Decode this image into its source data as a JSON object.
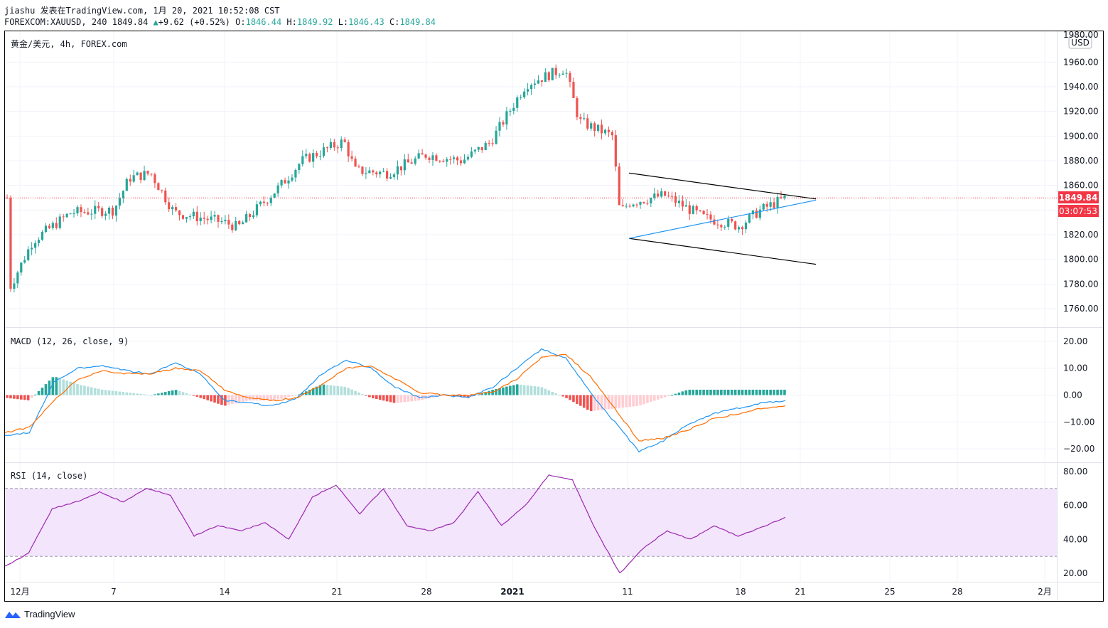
{
  "header": {
    "line1": "jiashu 发表在TradingView.com, 1月 20, 2021 10:52:08 CST",
    "symbol_line": "FOREXCOM:XAUUSD, 240 1849.84",
    "change_arrow": "▲",
    "change": "+9.62 (+0.52%)",
    "o_label": "O:",
    "o_value": "1846.44",
    "h_label": "H:",
    "h_value": "1849.92",
    "l_label": "L:",
    "l_value": "1846.43",
    "c_label": "C:",
    "c_value": "1849.84"
  },
  "main_pane": {
    "title": "黄金/美元, 4h, FOREX.com",
    "currency_badge": "USD",
    "price_ticks": [
      "1960.00",
      "1940.00",
      "1920.00",
      "1900.00",
      "1880.00",
      "1860.00",
      "1820.00",
      "1800.00",
      "1780.00",
      "1760.00"
    ],
    "top_tick": "1980.00",
    "last_price_label": "1849.84",
    "countdown_label": "03:07:53"
  },
  "macd_pane": {
    "title": "MACD (12, 26, close, 9)",
    "ticks": [
      "20.00",
      "10.00",
      "0.00",
      "−10.00",
      "−20.00"
    ]
  },
  "rsi_pane": {
    "title": "RSI (14, close)",
    "ticks": [
      "80.00",
      "60.00",
      "40.00",
      "20.00"
    ]
  },
  "time_axis": [
    "12月",
    "7",
    "14",
    "21",
    "28",
    "2021",
    "11",
    "18",
    "21",
    "25",
    "28",
    "2月"
  ],
  "footer": {
    "brand": "TradingView"
  },
  "colors": {
    "up": "#26a69a",
    "down": "#ef5350",
    "macd_line": "#2196f3",
    "signal_line": "#ff6d00",
    "rsi_line": "#9c27b0",
    "rsi_band": "#f3e5fc",
    "last_price": "#f23645"
  },
  "chart_data": [
    {
      "type": "candlestick",
      "title": "黄金/美元, 4h, FOREX.com",
      "ylim": [
        1745,
        1985
      ],
      "y_axis_side": "right",
      "x_ticks": [
        "12月",
        "7",
        "14",
        "21",
        "28",
        "2021",
        "11",
        "18",
        "21",
        "25",
        "28",
        "2月"
      ],
      "ohlc_waypoints_close": [
        {
          "t": "12月",
          "close": 1775
        },
        {
          "t": "12月 2",
          "close": 1815
        },
        {
          "t": "12月 4",
          "close": 1838
        },
        {
          "t": "12月 7",
          "close": 1840
        },
        {
          "t": "12月 8",
          "close": 1866
        },
        {
          "t": "12月 9",
          "close": 1870
        },
        {
          "t": "12月 10",
          "close": 1838
        },
        {
          "t": "12月 14",
          "close": 1830
        },
        {
          "t": "12月 15",
          "close": 1826
        },
        {
          "t": "12月 17",
          "close": 1860
        },
        {
          "t": "12月 18",
          "close": 1880
        },
        {
          "t": "12月 21",
          "close": 1896
        },
        {
          "t": "12月 22",
          "close": 1872
        },
        {
          "t": "12月 24",
          "close": 1870
        },
        {
          "t": "12月 28",
          "close": 1885
        },
        {
          "t": "12月 30",
          "close": 1880
        },
        {
          "t": "12月 31",
          "close": 1895
        },
        {
          "t": "1月 4",
          "close": 1942
        },
        {
          "t": "1月 6",
          "close": 1955
        },
        {
          "t": "1月 7",
          "close": 1912
        },
        {
          "t": "1月 8",
          "close": 1900
        },
        {
          "t": "1月 8 late",
          "close": 1838
        },
        {
          "t": "1月 11",
          "close": 1846
        },
        {
          "t": "1月 13",
          "close": 1852
        },
        {
          "t": "1月 15",
          "close": 1834
        },
        {
          "t": "1月 18",
          "close": 1827
        },
        {
          "t": "1月 19",
          "close": 1840
        },
        {
          "t": "1月 20",
          "close": 1849.84
        }
      ],
      "last": {
        "open": 1846.44,
        "high": 1849.92,
        "low": 1846.43,
        "close": 1849.84
      },
      "annotations": [
        {
          "type": "trendline",
          "color": "#000000",
          "from": {
            "t": "1月 11",
            "price": 1870
          },
          "to": {
            "t": "1月 21",
            "price": 1849
          }
        },
        {
          "type": "trendline",
          "color": "#000000",
          "from": {
            "t": "1月 11",
            "price": 1817
          },
          "to": {
            "t": "1月 21",
            "price": 1796
          }
        },
        {
          "type": "trendline",
          "color": "#2196f3",
          "from": {
            "t": "1月 11",
            "price": 1817
          },
          "to": {
            "t": "1月 21",
            "price": 1848
          }
        },
        {
          "type": "horizontal",
          "color": "#f23645",
          "price": 1849.84,
          "style": "dotted"
        }
      ]
    },
    {
      "type": "line",
      "title": "MACD (12, 26, close, 9)",
      "ylim": [
        -25,
        25
      ],
      "series": [
        {
          "name": "MACD",
          "values": [
            -15,
            -14,
            5,
            10,
            11,
            9,
            8,
            12,
            8,
            -2,
            -3,
            -4,
            -1,
            8,
            13,
            10,
            3,
            -1,
            0,
            -1,
            3,
            10,
            17,
            14,
            1,
            -10,
            -21,
            -17,
            -11,
            -7,
            -5,
            -3,
            -2
          ]
        },
        {
          "name": "Signal",
          "values": [
            -14,
            -12,
            -2,
            6,
            9,
            8,
            8,
            10,
            9,
            2,
            -1,
            -2,
            -1,
            4,
            10,
            11,
            6,
            1,
            0,
            0,
            1,
            6,
            14,
            15,
            7,
            -5,
            -17,
            -16,
            -13,
            -9,
            -7,
            -5,
            -4
          ]
        },
        {
          "name": "Histogram",
          "values": [
            -1,
            -2,
            7,
            4,
            2,
            1,
            0,
            2,
            -1,
            -4,
            -2,
            -2,
            0,
            4,
            3,
            -1,
            -3,
            -2,
            0,
            -1,
            2,
            4,
            3,
            -1,
            -6,
            -5,
            -4,
            -1,
            2,
            2,
            2,
            2,
            2
          ]
        }
      ]
    },
    {
      "type": "line",
      "title": "RSI (14, close)",
      "ylim": [
        15,
        85
      ],
      "band": [
        30,
        70
      ],
      "series": [
        {
          "name": "RSI",
          "values": [
            24,
            32,
            58,
            62,
            68,
            62,
            70,
            66,
            42,
            48,
            45,
            50,
            40,
            65,
            72,
            55,
            70,
            48,
            45,
            50,
            68,
            48,
            60,
            78,
            75,
            45,
            20,
            35,
            45,
            40,
            48,
            42,
            47,
            53
          ]
        }
      ]
    }
  ]
}
